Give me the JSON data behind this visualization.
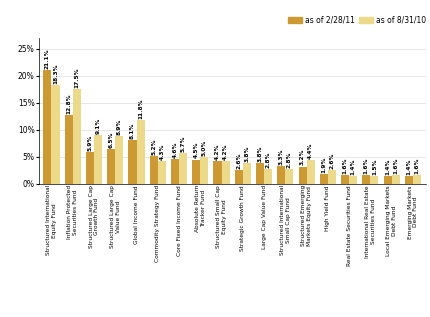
{
  "categories": [
    "Structured International\nEquity Fund",
    "Inflation Protected\nSecurities Fund",
    "Structured Large Cap\nGrowth Fund",
    "Structured Large Cap\nValue Fund",
    "Global Income Fund",
    "Commodity Strategy Fund",
    "Core Fixed Income Fund",
    "Absolute Return\nTracker Fund",
    "Structured Small Cap\nEquity Fund",
    "Strategic Growth Fund",
    "Large Cap Value Fund",
    "Structured International\nSmall Cap Fund",
    "Structured Emerging\nMarkets Equity Fund",
    "High Yield Fund",
    "Real Estate Securities Fund",
    "International Real Estate\nSecurities Fund",
    "Local Emerging Markets\nDebt Fund",
    "Emerging Markets\nDebt Fund"
  ],
  "values_228": [
    21.1,
    12.8,
    5.9,
    6.5,
    8.1,
    5.2,
    4.6,
    4.5,
    4.2,
    2.6,
    3.8,
    3.3,
    3.2,
    1.9,
    1.6,
    1.6,
    1.4,
    1.4
  ],
  "values_831": [
    18.3,
    17.5,
    9.1,
    8.9,
    11.8,
    4.3,
    5.7,
    5.0,
    4.2,
    3.8,
    2.8,
    2.8,
    4.4,
    2.6,
    1.4,
    1.5,
    1.6,
    1.6
  ],
  "color_228": "#CC9933",
  "color_831": "#EDD98A",
  "bar_width": 0.38,
  "ylim": [
    0,
    27
  ],
  "yticks": [
    0,
    5,
    10,
    15,
    20,
    25
  ],
  "ytick_labels": [
    "0%",
    "5%",
    "10%",
    "15%",
    "20%",
    "25%"
  ],
  "legend_label_228": "as of 2/28/11",
  "legend_label_831": "as of 8/31/10",
  "value_fontsize": 4.2,
  "label_fontsize": 4.2,
  "tick_fontsize": 5.5
}
